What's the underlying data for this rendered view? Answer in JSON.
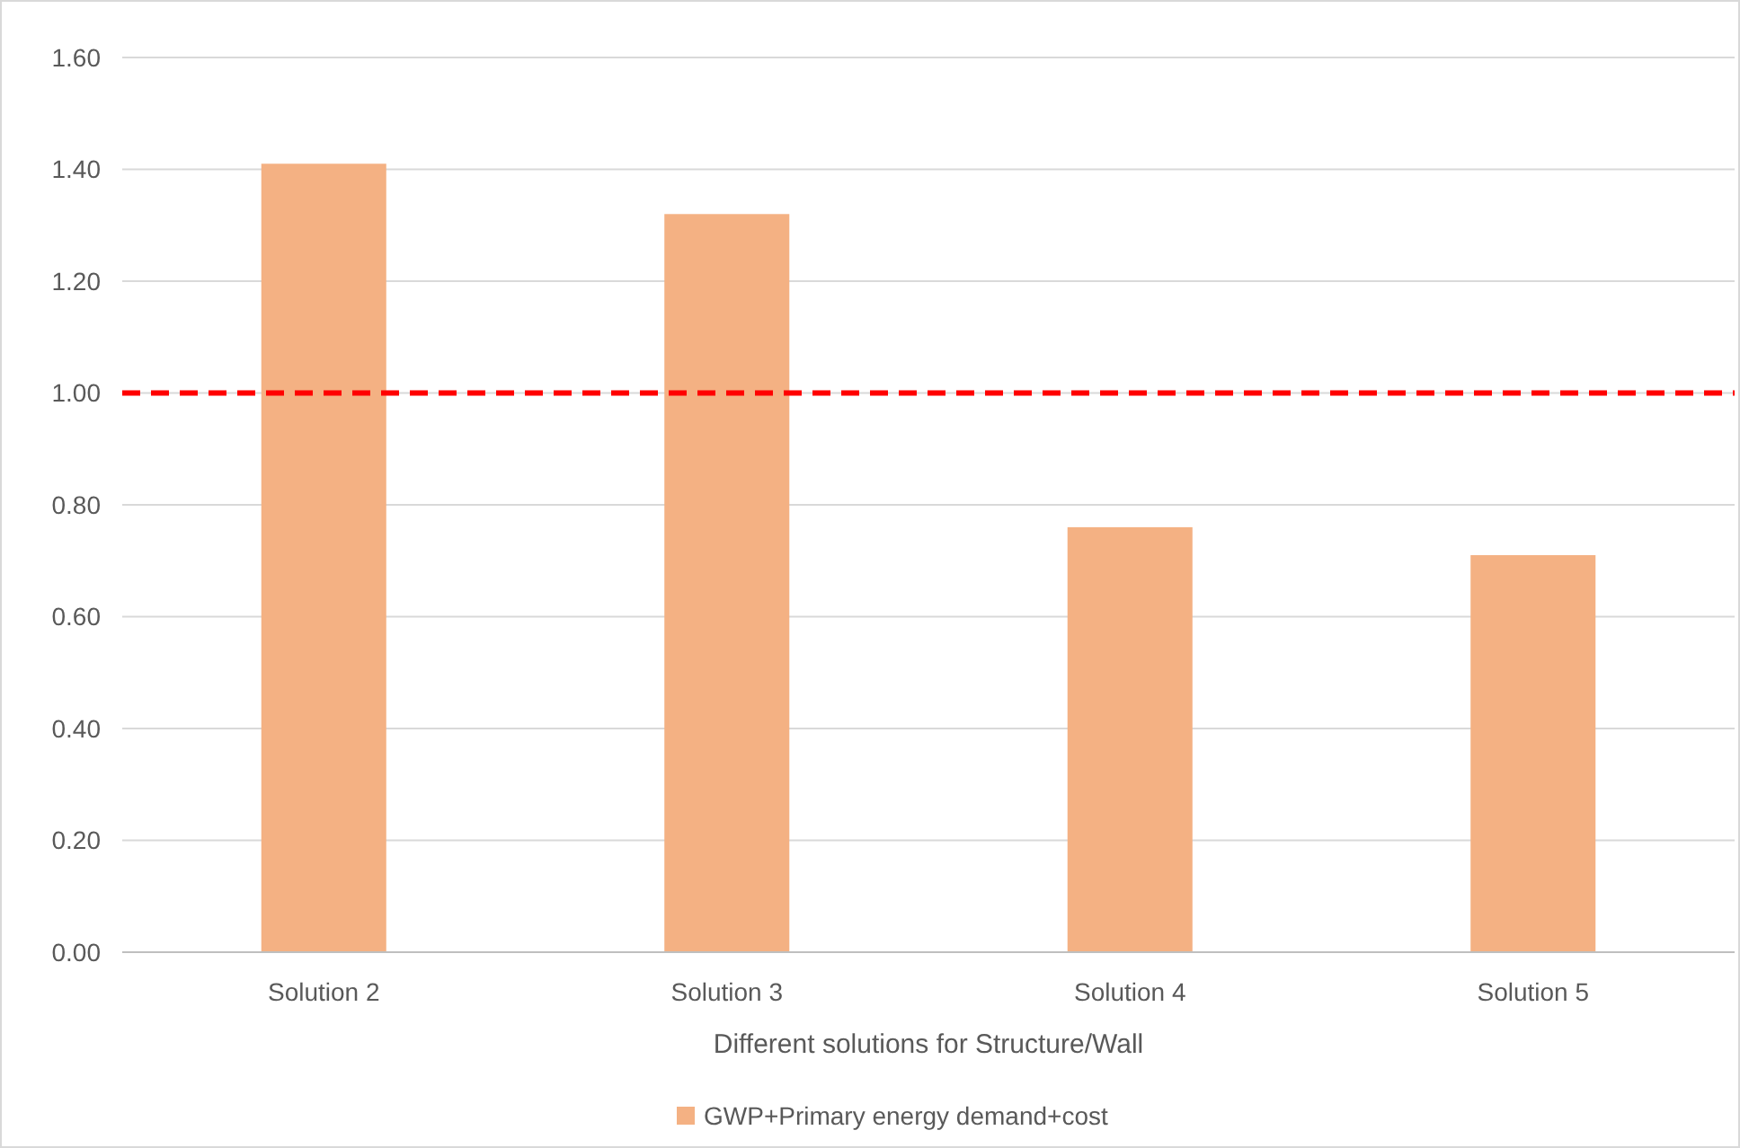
{
  "chart_data": {
    "type": "bar",
    "xlabel": "Different solutions for Structure/Wall",
    "categories": [
      "Solution 2",
      "Solution 3",
      "Solution 4",
      "Solution 5"
    ],
    "series": [
      {
        "name": "GWP+Primary energy demand+cost",
        "color": "#f4b183",
        "values": [
          1.41,
          1.32,
          0.76,
          0.71
        ]
      }
    ],
    "ylim": [
      0,
      1.6
    ],
    "yticks": [
      {
        "value": 0,
        "label": "0.00"
      },
      {
        "value": 0.2,
        "label": "0.20"
      },
      {
        "value": 0.4,
        "label": "0.40"
      },
      {
        "value": 0.6,
        "label": "0.60"
      },
      {
        "value": 0.8,
        "label": "0.80"
      },
      {
        "value": 1,
        "label": "1.00"
      },
      {
        "value": 1.2,
        "label": "1.20"
      },
      {
        "value": 1.4,
        "label": "1.40"
      },
      {
        "value": 1.6,
        "label": "1.60"
      }
    ],
    "grid": "y",
    "legend": "bottom",
    "ref_lines": [
      {
        "axis": "y",
        "value": 1,
        "color": "#ff0000",
        "line_style": "dashed"
      }
    ]
  }
}
